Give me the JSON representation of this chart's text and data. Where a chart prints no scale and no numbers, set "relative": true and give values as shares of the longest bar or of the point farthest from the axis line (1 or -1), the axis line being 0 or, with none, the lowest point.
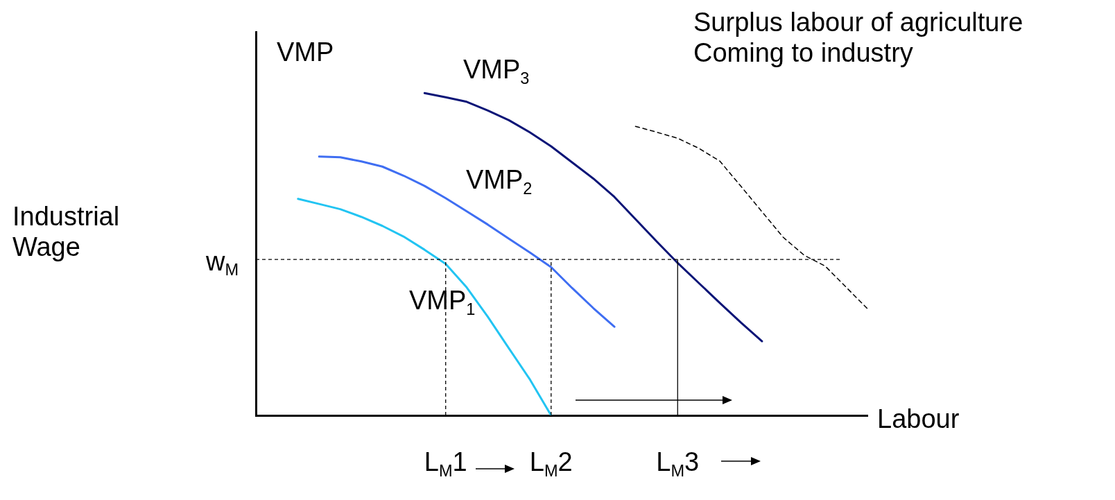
{
  "chart_data": {
    "type": "line",
    "relative": true,
    "title": "Surplus labour of agriculture Coming to industry",
    "xlabel": "Labour",
    "annotations": [
      "VMP",
      "Industrial Wage"
    ],
    "marker": "none",
    "categories": [
      null,
      null,
      null,
      null,
      null,
      null,
      null,
      null,
      null,
      "L$_{M}$1",
      null,
      null,
      null,
      null,
      "L$_{M}$2",
      null,
      null,
      null,
      null,
      null,
      "L$_{M}$3",
      null,
      null,
      null,
      null,
      null,
      null,
      null,
      null,
      null
    ],
    "series": [
      {
        "name": "VMP$_{3}$",
        "color": "#0b1577",
        "values": [
          null,
          null,
          null,
          null,
          null,
          null,
          null,
          null,
          1.0,
          0.987,
          0.973,
          0.946,
          0.916,
          0.878,
          0.835,
          0.785,
          0.735,
          0.678,
          0.609,
          0.54,
          0.473,
          0.411,
          0.349,
          0.288,
          0.23,
          null,
          null,
          null,
          null,
          null
        ]
      },
      {
        "name": "VMP$_{2}$",
        "color": "#3f6ef2",
        "values": [
          null,
          null,
          null,
          0.803,
          0.801,
          0.788,
          0.772,
          0.744,
          0.712,
          0.674,
          0.633,
          0.592,
          0.548,
          0.505,
          0.46,
          0.395,
          0.333,
          0.275,
          null,
          null,
          null,
          null,
          null,
          null,
          null,
          null,
          null,
          null,
          null,
          null
        ]
      },
      {
        "name": "VMP$_{1}$",
        "color": "#22c4f2",
        "values": [
          null,
          null,
          0.672,
          0.656,
          0.64,
          0.616,
          0.588,
          0.555,
          0.514,
          0.47,
          0.397,
          0.306,
          0.208,
          0.111,
          0,
          null,
          null,
          null,
          null,
          null,
          null,
          null,
          null,
          null,
          null,
          null,
          null,
          null,
          null,
          null
        ]
      },
      {
        "color": "#000000",
        "line_style": "dashed",
        "values": [
          null,
          null,
          null,
          null,
          null,
          null,
          null,
          null,
          null,
          null,
          null,
          null,
          null,
          null,
          null,
          null,
          null,
          null,
          0.897,
          0.879,
          0.86,
          0.829,
          0.789,
          0.711,
          0.632,
          0.553,
          0.497,
          0.463,
          0.397,
          0.331
        ]
      }
    ],
    "ref_lines": [
      {
        "axis": "y",
        "value": 0.484,
        "label": "w$_{M}$",
        "line_style": "dashed",
        "color": "#000000"
      },
      {
        "axis": "x",
        "value": "L$_{M}$1",
        "line_style": "dashed",
        "color": "#000000"
      },
      {
        "axis": "x",
        "value": "L$_{M}$2",
        "line_style": "dashed",
        "color": "#000000"
      },
      {
        "axis": "x",
        "value": "L$_{M}$3",
        "line_style": "solid",
        "color": "#000000"
      }
    ]
  }
}
